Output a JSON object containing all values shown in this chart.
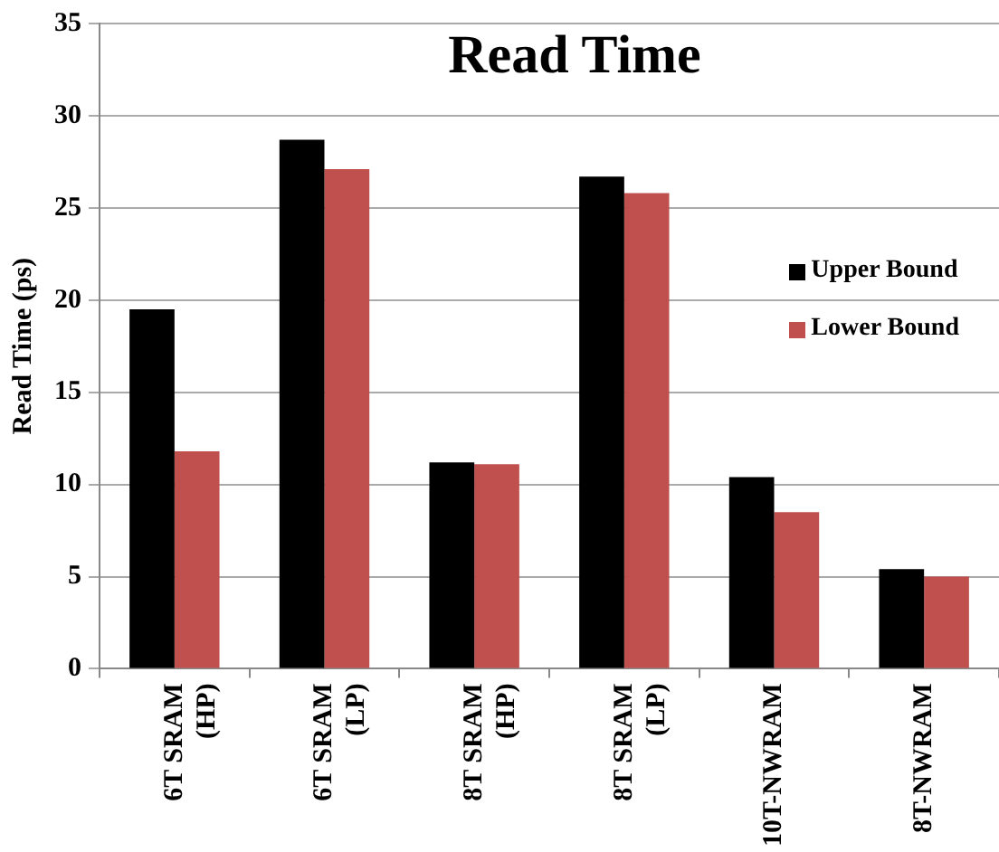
{
  "chart_data": {
    "type": "bar",
    "title": "Read Time",
    "ylabel": "Read Time (ps)",
    "categories": [
      "6T SRAM (HP)",
      "6T SRAM (LP)",
      "8T SRAM (HP)",
      "8T SRAM (LP)",
      "10T-NWRAM",
      "8T-NWRAM"
    ],
    "series": [
      {
        "name": "Upper Bound",
        "color": "#000000",
        "values": [
          19.5,
          28.7,
          11.2,
          26.7,
          10.4,
          5.4
        ]
      },
      {
        "name": "Lower Bound",
        "color": "#c0504d",
        "values": [
          11.8,
          27.1,
          11.1,
          25.8,
          8.5,
          5.0
        ]
      }
    ],
    "ylim": [
      0,
      35
    ],
    "yticks": [
      0,
      5,
      10,
      15,
      20,
      25,
      30,
      35
    ],
    "grid": "y",
    "legend": "right"
  }
}
